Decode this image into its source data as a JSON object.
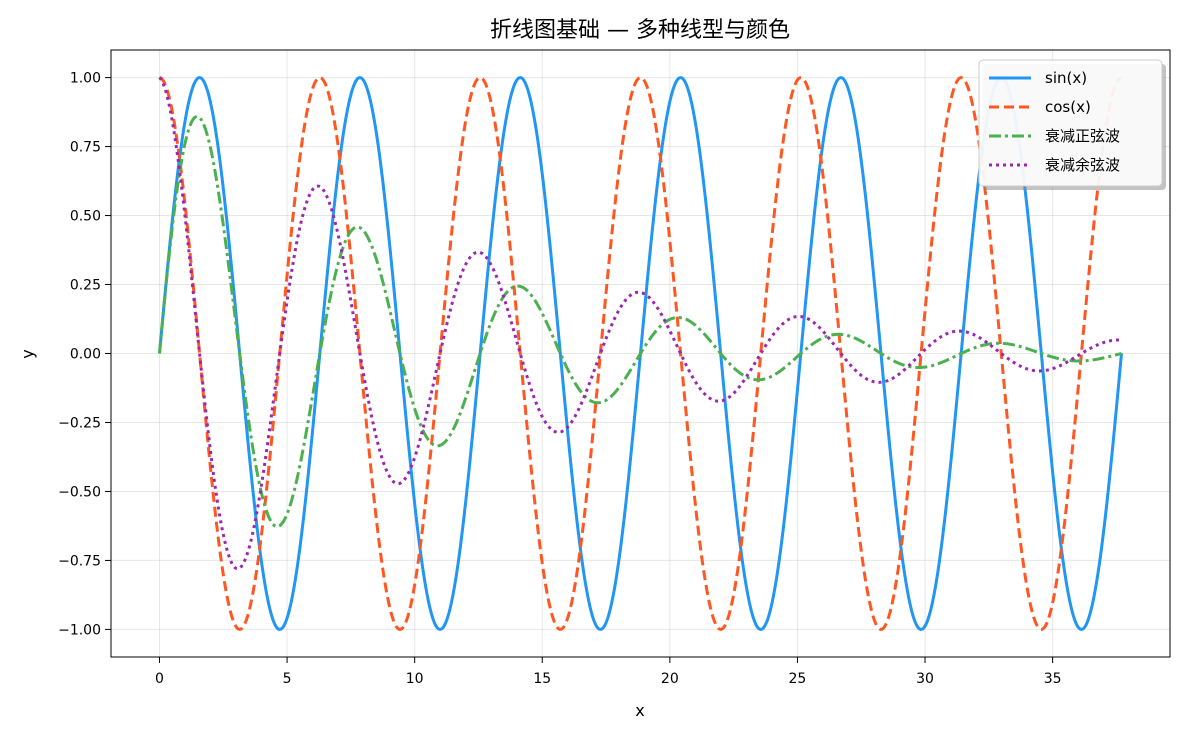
{
  "chart_data": {
    "type": "line",
    "title": "折线图基础 — 多种线型与颜色",
    "xlabel": "x",
    "ylabel": "y",
    "xlim": [
      -1.9,
      39.6
    ],
    "ylim": [
      -1.1,
      1.1
    ],
    "xticks": [
      0,
      5,
      10,
      15,
      20,
      25,
      30,
      35
    ],
    "xtick_labels": [
      "0",
      "5",
      "10",
      "15",
      "20",
      "25",
      "30",
      "35"
    ],
    "yticks": [
      1.0,
      0.75,
      0.5,
      0.25,
      0.0,
      -0.25,
      -0.5,
      -0.75,
      -1.0
    ],
    "ytick_labels": [
      "1.00",
      "0.75",
      "0.50",
      "0.25",
      "0.00",
      "−0.25",
      "−0.50",
      "−0.75",
      "−1.00"
    ],
    "grid": true,
    "legend_position": "top-right",
    "x_range": [
      0,
      37.7
    ],
    "series": [
      {
        "name": "sin(x)",
        "function": "sin(x)",
        "color": "#2196F3",
        "linestyle": "solid"
      },
      {
        "name": "cos(x)",
        "function": "cos(x)",
        "color": "#FF5722",
        "linestyle": "dashed"
      },
      {
        "name": "衰减正弦波",
        "function": "exp(-0.1x)*sin(x)",
        "color": "#4CAF50",
        "linestyle": "dashdot"
      },
      {
        "name": "衰减余弦波",
        "function": "exp(-0.08x)*cos(x)",
        "color": "#9C27B0",
        "linestyle": "dotted"
      }
    ]
  }
}
